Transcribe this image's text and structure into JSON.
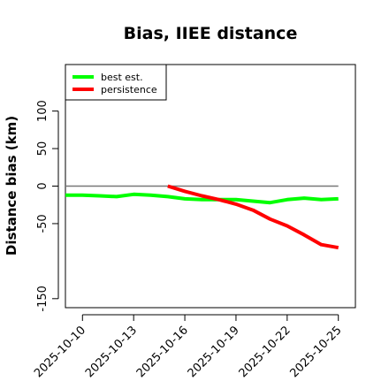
{
  "chart_data": {
    "type": "line",
    "title": "Bias, IIEE distance",
    "xlabel": "",
    "ylabel": "Distance bias (km)",
    "x_ticks": [
      "2025-10-10",
      "2025-10-13",
      "2025-10-16",
      "2025-10-19",
      "2025-10-22",
      "2025-10-25"
    ],
    "y_ticks": [
      -150,
      -50,
      0,
      50,
      100
    ],
    "xlim": [
      "2025-10-09",
      "2025-10-26"
    ],
    "ylim": [
      -162,
      162
    ],
    "reference_line": 0,
    "grid": false,
    "legend_position": "top-left",
    "series": [
      {
        "name": "best est.",
        "color": "#00ff00",
        "x": [
          "2025-10-09",
          "2025-10-10",
          "2025-10-11",
          "2025-10-12",
          "2025-10-13",
          "2025-10-14",
          "2025-10-15",
          "2025-10-16",
          "2025-10-17",
          "2025-10-18",
          "2025-10-19",
          "2025-10-20",
          "2025-10-21",
          "2025-10-22",
          "2025-10-23",
          "2025-10-24",
          "2025-10-25"
        ],
        "y": [
          -12,
          -12,
          -13,
          -14,
          -11,
          -12,
          -14,
          -17,
          -18,
          -18,
          -18,
          -20,
          -22,
          -18,
          -16,
          -18,
          -17
        ]
      },
      {
        "name": "persistence",
        "color": "#ff0000",
        "x": [
          "2025-10-15",
          "2025-10-16",
          "2025-10-17",
          "2025-10-18",
          "2025-10-19",
          "2025-10-20",
          "2025-10-21",
          "2025-10-22",
          "2025-10-23",
          "2025-10-24",
          "2025-10-25"
        ],
        "y": [
          0,
          -7,
          -13,
          -18,
          -24,
          -32,
          -44,
          -53,
          -65,
          -78,
          -82
        ]
      }
    ]
  }
}
